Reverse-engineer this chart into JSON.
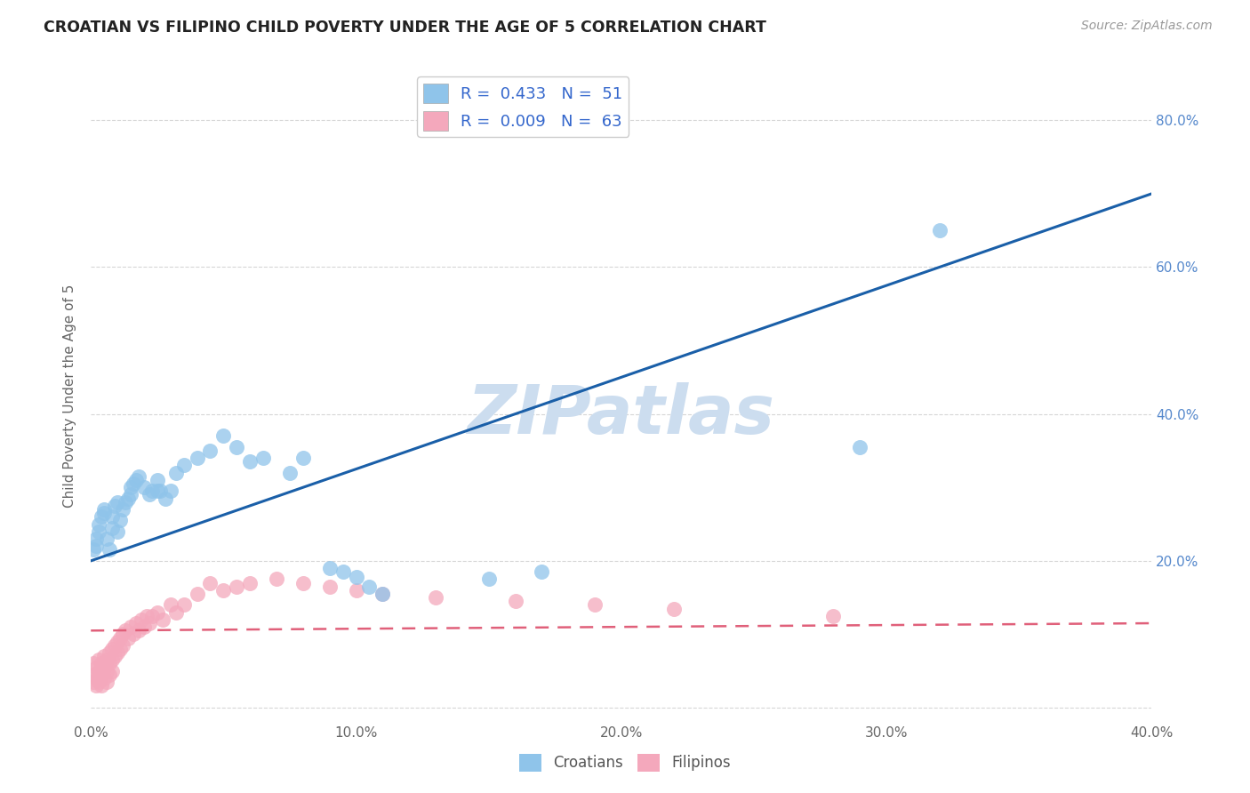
{
  "title": "CROATIAN VS FILIPINO CHILD POVERTY UNDER THE AGE OF 5 CORRELATION CHART",
  "source": "Source: ZipAtlas.com",
  "ylabel": "Child Poverty Under the Age of 5",
  "xlim": [
    0.0,
    0.4
  ],
  "ylim": [
    -0.02,
    0.87
  ],
  "xticks": [
    0.0,
    0.1,
    0.2,
    0.3,
    0.4
  ],
  "xtick_labels": [
    "0.0%",
    "10.0%",
    "20.0%",
    "30.0%",
    "40.0%"
  ],
  "yticks": [
    0.0,
    0.2,
    0.4,
    0.6,
    0.8
  ],
  "ytick_labels_right": [
    "",
    "20.0%",
    "40.0%",
    "60.0%",
    "80.0%"
  ],
  "croatian_color": "#8fc4ea",
  "filipino_color": "#f4a8bc",
  "regression_blue": "#1a5fa8",
  "regression_pink": "#e0607a",
  "croatian_R": 0.433,
  "croatian_N": 51,
  "filipino_R": 0.009,
  "filipino_N": 63,
  "watermark": "ZIPatlas",
  "watermark_color": "#ccddef",
  "background_color": "#ffffff",
  "grid_color": "#cccccc",
  "croatian_x": [
    0.001,
    0.002,
    0.002,
    0.003,
    0.003,
    0.004,
    0.005,
    0.005,
    0.006,
    0.007,
    0.008,
    0.008,
    0.009,
    0.01,
    0.01,
    0.011,
    0.012,
    0.013,
    0.014,
    0.015,
    0.015,
    0.016,
    0.017,
    0.018,
    0.02,
    0.022,
    0.023,
    0.025,
    0.025,
    0.026,
    0.028,
    0.03,
    0.032,
    0.035,
    0.04,
    0.045,
    0.05,
    0.055,
    0.06,
    0.065,
    0.075,
    0.08,
    0.09,
    0.095,
    0.1,
    0.105,
    0.11,
    0.15,
    0.17,
    0.29,
    0.32
  ],
  "croatian_y": [
    0.215,
    0.22,
    0.23,
    0.24,
    0.25,
    0.26,
    0.265,
    0.27,
    0.23,
    0.215,
    0.245,
    0.26,
    0.275,
    0.28,
    0.24,
    0.255,
    0.27,
    0.28,
    0.285,
    0.29,
    0.3,
    0.305,
    0.31,
    0.315,
    0.3,
    0.29,
    0.295,
    0.295,
    0.31,
    0.295,
    0.285,
    0.295,
    0.32,
    0.33,
    0.34,
    0.35,
    0.37,
    0.355,
    0.335,
    0.34,
    0.32,
    0.34,
    0.19,
    0.185,
    0.178,
    0.165,
    0.155,
    0.175,
    0.185,
    0.355,
    0.65
  ],
  "filipino_x": [
    0.001,
    0.001,
    0.001,
    0.002,
    0.002,
    0.002,
    0.003,
    0.003,
    0.003,
    0.004,
    0.004,
    0.004,
    0.005,
    0.005,
    0.005,
    0.006,
    0.006,
    0.006,
    0.007,
    0.007,
    0.007,
    0.008,
    0.008,
    0.008,
    0.009,
    0.009,
    0.01,
    0.01,
    0.011,
    0.011,
    0.012,
    0.012,
    0.013,
    0.014,
    0.015,
    0.016,
    0.017,
    0.018,
    0.019,
    0.02,
    0.021,
    0.022,
    0.023,
    0.025,
    0.027,
    0.03,
    0.032,
    0.035,
    0.04,
    0.045,
    0.05,
    0.055,
    0.06,
    0.07,
    0.08,
    0.09,
    0.1,
    0.11,
    0.13,
    0.16,
    0.19,
    0.22,
    0.28
  ],
  "filipino_y": [
    0.06,
    0.045,
    0.035,
    0.055,
    0.04,
    0.03,
    0.065,
    0.05,
    0.035,
    0.06,
    0.045,
    0.03,
    0.07,
    0.055,
    0.04,
    0.065,
    0.05,
    0.035,
    0.075,
    0.06,
    0.045,
    0.08,
    0.065,
    0.05,
    0.085,
    0.07,
    0.09,
    0.075,
    0.095,
    0.08,
    0.1,
    0.085,
    0.105,
    0.095,
    0.11,
    0.1,
    0.115,
    0.105,
    0.12,
    0.11,
    0.125,
    0.115,
    0.125,
    0.13,
    0.12,
    0.14,
    0.13,
    0.14,
    0.155,
    0.17,
    0.16,
    0.165,
    0.17,
    0.175,
    0.17,
    0.165,
    0.16,
    0.155,
    0.15,
    0.145,
    0.14,
    0.135,
    0.125
  ],
  "blue_line_x": [
    0.0,
    0.4
  ],
  "blue_line_y": [
    0.2,
    0.7
  ],
  "pink_line_x": [
    0.0,
    0.4
  ],
  "pink_line_y": [
    0.105,
    0.115
  ]
}
